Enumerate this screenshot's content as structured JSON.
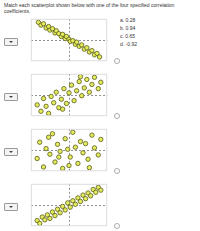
{
  "question": "Match each scatterplot shown below with one of the four specified correlation coefficients.",
  "options": [
    "a. 0.28",
    "b. 0.94",
    "c. 0.65",
    "d. -0.92"
  ],
  "chart_data": [
    {
      "type": "scatter",
      "color": "#e3ec5c",
      "marker": "circle",
      "grid": true,
      "tick_labels": false,
      "xlim": [
        -3,
        3
      ],
      "ylim": [
        -3,
        3
      ],
      "xticks": [
        0
      ],
      "yticks": [
        0
      ],
      "x": [
        -2.4,
        -2.2,
        -2.0,
        -1.8,
        -1.6,
        -1.5,
        -1.3,
        -1.1,
        -1.0,
        -0.8,
        -0.6,
        -0.5,
        -0.3,
        -0.2,
        0,
        0.1,
        0.3,
        0.5,
        0.6,
        0.8,
        1.0,
        1.2,
        1.4,
        1.6,
        1.8,
        2.0,
        2.2,
        2.4
      ],
      "values": [
        2.5,
        2.1,
        2.3,
        1.7,
        1.9,
        1.4,
        1.6,
        1.0,
        1.3,
        0.9,
        0.5,
        0.8,
        0.2,
        0.5,
        0.1,
        -0.2,
        -0.1,
        -0.6,
        -0.3,
        -0.9,
        -0.7,
        -1.3,
        -1.1,
        -1.7,
        -1.5,
        -2.1,
        -1.9,
        -2.4
      ]
    },
    {
      "type": "scatter",
      "color": "#e3ec5c",
      "marker": "circle",
      "grid": true,
      "tick_labels": false,
      "xlim": [
        -3,
        3
      ],
      "ylim": [
        -3,
        3
      ],
      "xticks": [
        0
      ],
      "yticks": [
        0
      ],
      "x": [
        -2.5,
        -2.2,
        -2.0,
        -1.8,
        -1.6,
        -1.4,
        -1.2,
        -1.0,
        -0.8,
        -0.6,
        -0.4,
        -0.2,
        0,
        0.2,
        0.4,
        0.6,
        0.8,
        1.0,
        1.2,
        1.4,
        1.6,
        1.8,
        2.0,
        2.3,
        2.5,
        -0.5,
        0.9
      ],
      "values": [
        -1.4,
        -2.3,
        -0.5,
        -1.6,
        -2.6,
        -0.2,
        -1.1,
        0.4,
        -1.8,
        -0.6,
        0.9,
        -1.2,
        0.3,
        1.4,
        -0.8,
        0.6,
        1.9,
        -0.1,
        1.0,
        2.2,
        0.4,
        1.5,
        2.5,
        0.9,
        1.8,
        -2.0,
        2.6
      ]
    },
    {
      "type": "scatter",
      "color": "#e3ec5c",
      "marker": "circle",
      "grid": true,
      "tick_labels": false,
      "xlim": [
        -3,
        3
      ],
      "ylim": [
        -3,
        3
      ],
      "xticks": [
        0
      ],
      "yticks": [
        0
      ],
      "x": [
        -2.5,
        -2.3,
        -2.0,
        -1.8,
        -1.5,
        -1.3,
        -1.1,
        -0.9,
        -0.7,
        -0.5,
        -0.3,
        -0.1,
        0.1,
        0.3,
        0.5,
        0.7,
        0.9,
        1.1,
        1.3,
        1.5,
        1.8,
        2.0,
        2.3,
        2.5,
        -1.6,
        0.0,
        1.6,
        -0.8
      ],
      "values": [
        -1.2,
        1.1,
        -2.4,
        0.2,
        -0.6,
        2.3,
        -1.7,
        0.8,
        -0.2,
        -2.6,
        1.6,
        0.1,
        -1.0,
        2.5,
        0.4,
        -1.9,
        1.2,
        -0.4,
        0.9,
        -1.3,
        2.1,
        0.3,
        -0.7,
        1.5,
        1.8,
        -2.2,
        -2.5,
        -1.0
      ]
    },
    {
      "type": "scatter",
      "color": "#e3ec5c",
      "marker": "circle",
      "grid": true,
      "tick_labels": false,
      "xlim": [
        -3,
        3
      ],
      "ylim": [
        -3,
        3
      ],
      "xticks": [
        0
      ],
      "yticks": [
        0
      ],
      "x": [
        -2.5,
        -2.3,
        -2.1,
        -1.9,
        -1.7,
        -1.5,
        -1.3,
        -1.1,
        -0.9,
        -0.7,
        -0.5,
        -0.3,
        -0.1,
        0.1,
        0.3,
        0.5,
        0.7,
        0.9,
        1.1,
        1.3,
        1.5,
        1.7,
        1.9,
        2.1,
        2.3,
        2.5
      ],
      "values": [
        -2.2,
        -2.6,
        -1.7,
        -2.1,
        -1.4,
        -1.9,
        -1.0,
        -1.5,
        -0.6,
        -1.1,
        -0.2,
        -0.7,
        0.3,
        -0.3,
        0.6,
        0.1,
        1.0,
        0.5,
        1.4,
        0.9,
        1.7,
        1.3,
        2.2,
        1.8,
        2.5,
        2.1
      ]
    }
  ]
}
